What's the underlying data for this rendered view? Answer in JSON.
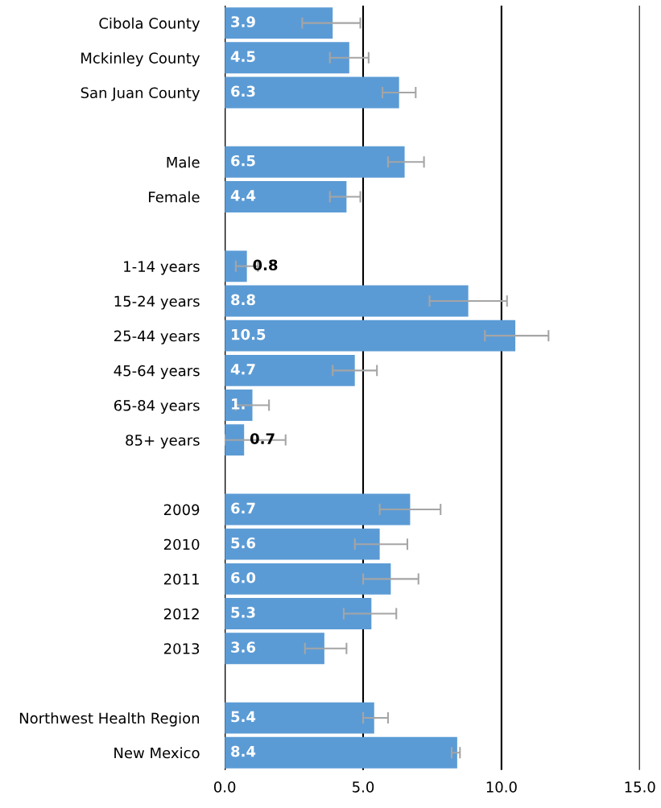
{
  "chart_data": {
    "type": "bar",
    "orientation": "horizontal",
    "categories": [
      "Cibola County",
      "Mckinley County",
      "San Juan County",
      null,
      "Male",
      "Female",
      null,
      "1-14 years",
      "15-24 years",
      "25-44 years",
      "45-64 years",
      "65-84 years",
      "85+ years",
      null,
      "2009",
      "2010",
      "2011",
      "2012",
      "2013",
      null,
      "Northwest Health Region",
      "New Mexico"
    ],
    "values": [
      3.9,
      4.5,
      6.3,
      null,
      6.5,
      4.4,
      null,
      0.8,
      8.8,
      10.5,
      4.7,
      1.0,
      0.7,
      null,
      6.7,
      5.6,
      6.0,
      5.3,
      3.6,
      null,
      5.4,
      8.4
    ],
    "errors": [
      [
        2.8,
        4.9
      ],
      [
        3.8,
        5.2
      ],
      [
        5.7,
        6.9
      ],
      null,
      [
        5.9,
        7.2
      ],
      [
        3.8,
        4.9
      ],
      null,
      [
        0.4,
        1.2
      ],
      [
        7.4,
        10.2
      ],
      [
        9.4,
        11.7
      ],
      [
        3.9,
        5.5
      ],
      [
        0.4,
        1.6
      ],
      [
        0.0,
        2.2
      ],
      null,
      [
        5.6,
        7.8
      ],
      [
        4.7,
        6.6
      ],
      [
        5.0,
        7.0
      ],
      [
        4.3,
        6.2
      ],
      [
        2.9,
        4.4
      ],
      null,
      [
        5.0,
        5.9
      ],
      [
        8.2,
        8.5
      ]
    ],
    "value_labels": [
      "3.9",
      "4.5",
      "6.3",
      null,
      "6.5",
      "4.4",
      null,
      "0.8",
      "8.8",
      "10.5",
      "4.7",
      "1.",
      "0.7",
      null,
      "6.7",
      "5.6",
      "6.0",
      "5.3",
      "3.6",
      null,
      "5.4",
      "8.4"
    ],
    "color": "#5b9bd5",
    "xlim": [
      0,
      15
    ],
    "xticks": [
      {
        "value": 0,
        "label": "0.0"
      },
      {
        "value": 5,
        "label": "5.0"
      },
      {
        "value": 10,
        "label": "10.0"
      },
      {
        "value": 15,
        "label": "15.0"
      }
    ],
    "grid": "x"
  }
}
